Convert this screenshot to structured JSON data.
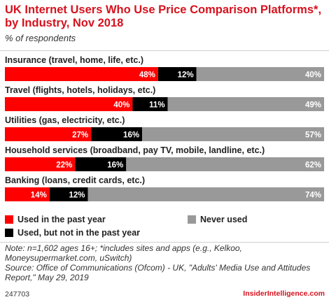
{
  "header": {
    "title": "UK Internet Users Who Use Price Comparison Platforms*, by Industry, Nov 2018",
    "subtitle": "% of respondents"
  },
  "chart_data": {
    "type": "bar",
    "orientation": "horizontal",
    "stacked": true,
    "categories": [
      "Insurance (travel, home, life, etc.)",
      "Travel (flights, hotels, holidays, etc.)",
      "Utilities (gas, electricity, etc.)",
      "Household services (broadband, pay TV, mobile, landline, etc.)",
      "Banking (loans, credit cards, etc.)"
    ],
    "series": [
      {
        "name": "Used in the past year",
        "values": [
          48,
          40,
          27,
          22,
          14
        ],
        "color": "#ff0000"
      },
      {
        "name": "Used, but not in the past year",
        "values": [
          12,
          11,
          16,
          16,
          12
        ],
        "color": "#000000"
      },
      {
        "name": "Never used",
        "values": [
          40,
          49,
          57,
          62,
          74
        ],
        "color": "#999999"
      }
    ],
    "value_suffix": "%",
    "xlim": [
      0,
      100
    ],
    "legend": "bottom"
  },
  "legend_items": [
    {
      "label": "Used in the past year",
      "color": "#ff0000"
    },
    {
      "label": "Never used",
      "color": "#999999"
    },
    {
      "label": "Used, but not in the past year",
      "color": "#000000"
    }
  ],
  "notes": {
    "note": "Note: n=1,602 ages 16+; *includes sites and apps (e.g., Kelkoo, Moneysupermarket.com, uSwitch)",
    "source": "Source: Office of Communications (Ofcom) - UK, \"Adults' Media Use and Attitudes Report,\" May 29, 2019"
  },
  "footer": {
    "chart_id": "247703",
    "brand": "InsiderIntelligence.com"
  }
}
